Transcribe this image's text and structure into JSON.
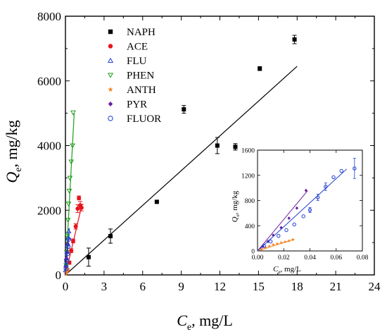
{
  "chart_data": [
    {
      "type": "scatter",
      "xlabel_main": "C",
      "xlabel_sub": "e",
      "xlabel_unit": ", mg/L",
      "ylabel_main": "Q",
      "ylabel_sub": "e",
      "ylabel_unit": ", mg/kg",
      "xlim": [
        0,
        24
      ],
      "ylim": [
        0,
        8000
      ],
      "xticks": [
        0,
        3,
        6,
        9,
        12,
        15,
        18,
        21,
        24
      ],
      "yticks": [
        0,
        2000,
        4000,
        6000,
        8000
      ],
      "legend_position": "top-left",
      "series": [
        {
          "name": "NAPH",
          "marker": "square-filled",
          "color": "#000000",
          "x": [
            1.8,
            3.5,
            7.1,
            9.2,
            11.8,
            13.2,
            15.1,
            17.8
          ],
          "y": [
            550,
            1200,
            2260,
            5120,
            4000,
            3960,
            6380,
            7280
          ],
          "err": [
            280,
            220,
            40,
            120,
            250,
            100,
            60,
            130
          ],
          "fit_line": {
            "x": [
              0,
              18.0
            ],
            "y": [
              0,
              6450
            ]
          }
        },
        {
          "name": "ACE",
          "marker": "circle-filled",
          "color": "#e8131b",
          "x": [
            0.15,
            0.3,
            0.45,
            0.6,
            0.8,
            0.95,
            1.05,
            1.15,
            1.25
          ],
          "y": [
            150,
            380,
            750,
            1050,
            1500,
            2050,
            2380,
            2150,
            2080
          ],
          "err": [
            40,
            50,
            60,
            60,
            80,
            120,
            60,
            120,
            100
          ],
          "fit_line": {
            "x": [
              0,
              1.3
            ],
            "y": [
              0,
              2200
            ]
          }
        },
        {
          "name": "FLU",
          "marker": "triangle-up-open",
          "color": "#1f3fd1",
          "x": [
            0.02,
            0.05,
            0.08,
            0.12,
            0.16,
            0.2,
            0.25
          ],
          "y": [
            150,
            320,
            520,
            720,
            950,
            1150,
            1350
          ],
          "fit_line": {
            "x": [
              0,
              0.3
            ],
            "y": [
              0,
              1450
            ]
          }
        },
        {
          "name": "PHEN",
          "marker": "triangle-down-open",
          "color": "#1a9e1a",
          "x": [
            0.05,
            0.1,
            0.15,
            0.2,
            0.25,
            0.3,
            0.35,
            0.45,
            0.55,
            0.6
          ],
          "y": [
            300,
            700,
            1200,
            1700,
            2200,
            2600,
            3000,
            3500,
            4000,
            5020
          ],
          "fit_line": {
            "x": [
              0,
              0.68
            ],
            "y": [
              0,
              5000
            ]
          }
        },
        {
          "name": "ANTH",
          "marker": "star",
          "color": "#f5841f",
          "x": [
            0.02,
            0.05,
            0.08,
            0.12,
            0.15,
            0.2
          ],
          "y": [
            30,
            60,
            90,
            120,
            150,
            180
          ],
          "fit_line": {
            "x": [
              0,
              0.22
            ],
            "y": [
              0,
              190
            ]
          }
        },
        {
          "name": "PYR",
          "marker": "diamond-filled",
          "color": "#6b1f9c",
          "x": [
            0.03,
            0.08,
            0.12,
            0.18
          ],
          "y": [
            250,
            500,
            700,
            950
          ],
          "fit_line": {
            "x": [
              0,
              0.2
            ],
            "y": [
              0,
              1000
            ]
          }
        },
        {
          "name": "FLUOR",
          "marker": "circle-open",
          "color": "#1f3fd1",
          "x": [
            0.05,
            0.1,
            0.15,
            0.2,
            0.25
          ],
          "y": [
            200,
            420,
            650,
            880,
            1100
          ],
          "fit_line": {
            "x": [
              0,
              0.28
            ],
            "y": [
              0,
              1220
            ]
          }
        }
      ]
    },
    {
      "type": "scatter",
      "inset": true,
      "xlabel_main": "C",
      "xlabel_sub": "e",
      "xlabel_unit": ", mg/L",
      "ylabel_main": "Q",
      "ylabel_sub": "e",
      "ylabel_unit": ", mg/kg",
      "xlim": [
        0,
        0.08
      ],
      "ylim": [
        0,
        1600
      ],
      "xticks": [
        0.0,
        0.02,
        0.04,
        0.06,
        0.08
      ],
      "xtick_labels": [
        "0.00",
        "0.02",
        "0.04",
        "0.06",
        "0.08"
      ],
      "yticks": [
        0,
        400,
        800,
        1200,
        1600
      ],
      "series": [
        {
          "name": "ANTH",
          "marker": "star",
          "color": "#f5841f",
          "x": [
            0.003,
            0.006,
            0.009,
            0.012,
            0.015,
            0.018,
            0.021,
            0.024,
            0.027
          ],
          "y": [
            30,
            55,
            75,
            100,
            115,
            130,
            145,
            160,
            180
          ],
          "fit_line": {
            "x": [
              0,
              0.028
            ],
            "y": [
              0,
              185
            ]
          }
        },
        {
          "name": "PYR",
          "marker": "diamond-filled",
          "color": "#6b1f9c",
          "x": [
            0.004,
            0.008,
            0.012,
            0.018,
            0.024,
            0.03,
            0.037
          ],
          "y": [
            70,
            150,
            250,
            370,
            520,
            680,
            960
          ],
          "fit_line": {
            "x": [
              0,
              0.038
            ],
            "y": [
              0,
              950
            ]
          }
        },
        {
          "name": "FLUOR",
          "marker": "circle-open",
          "color": "#1f3fd1",
          "x": [
            0.005,
            0.01,
            0.016,
            0.022,
            0.028,
            0.035,
            0.04,
            0.046,
            0.052,
            0.058,
            0.064,
            0.074
          ],
          "y": [
            80,
            150,
            240,
            330,
            420,
            550,
            650,
            850,
            1020,
            1170,
            1270,
            1310
          ],
          "err": [
            0,
            0,
            0,
            0,
            0,
            0,
            40,
            50,
            60,
            0,
            0,
            160
          ],
          "fit_line": {
            "x": [
              0,
              0.068
            ],
            "y": [
              0,
              1300
            ]
          }
        }
      ]
    }
  ]
}
